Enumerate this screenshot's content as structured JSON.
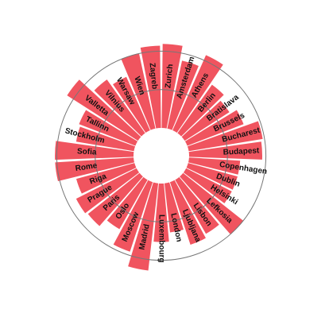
{
  "chart_data": {
    "type": "bar",
    "layout": "radial",
    "title": "",
    "xlabel": "",
    "ylabel": "",
    "ylim": [
      0,
      100
    ],
    "grid": true,
    "gridlines": [
      42,
      84
    ],
    "legend": "none",
    "bar_color": "#f0545f",
    "grid_color": "#777777",
    "categories": [
      "Zurich",
      "Amsterdam",
      "Athens",
      "Berlin",
      "Bratislava",
      "Brussels",
      "Bucharest",
      "Budapest",
      "Copenhagen",
      "Dublin",
      "Helsinki",
      "Lefkosia",
      "Lisbon",
      "Ljubljana",
      "London",
      "Luxembourg",
      "Madrid",
      "Moscow",
      "Oslo",
      "Paris",
      "Prague",
      "Riga",
      "Rome",
      "Sofia",
      "Stockholm",
      "Tallinn",
      "Valletta",
      "Vilnius",
      "Warsaw",
      "Wien",
      "Zagreb"
    ],
    "values": [
      92,
      76,
      90,
      65,
      58,
      66,
      82,
      80,
      56,
      56,
      56,
      84,
      68,
      72,
      54,
      64,
      96,
      80,
      62,
      72,
      74,
      66,
      86,
      86,
      64,
      66,
      92,
      72,
      64,
      84,
      90
    ]
  }
}
